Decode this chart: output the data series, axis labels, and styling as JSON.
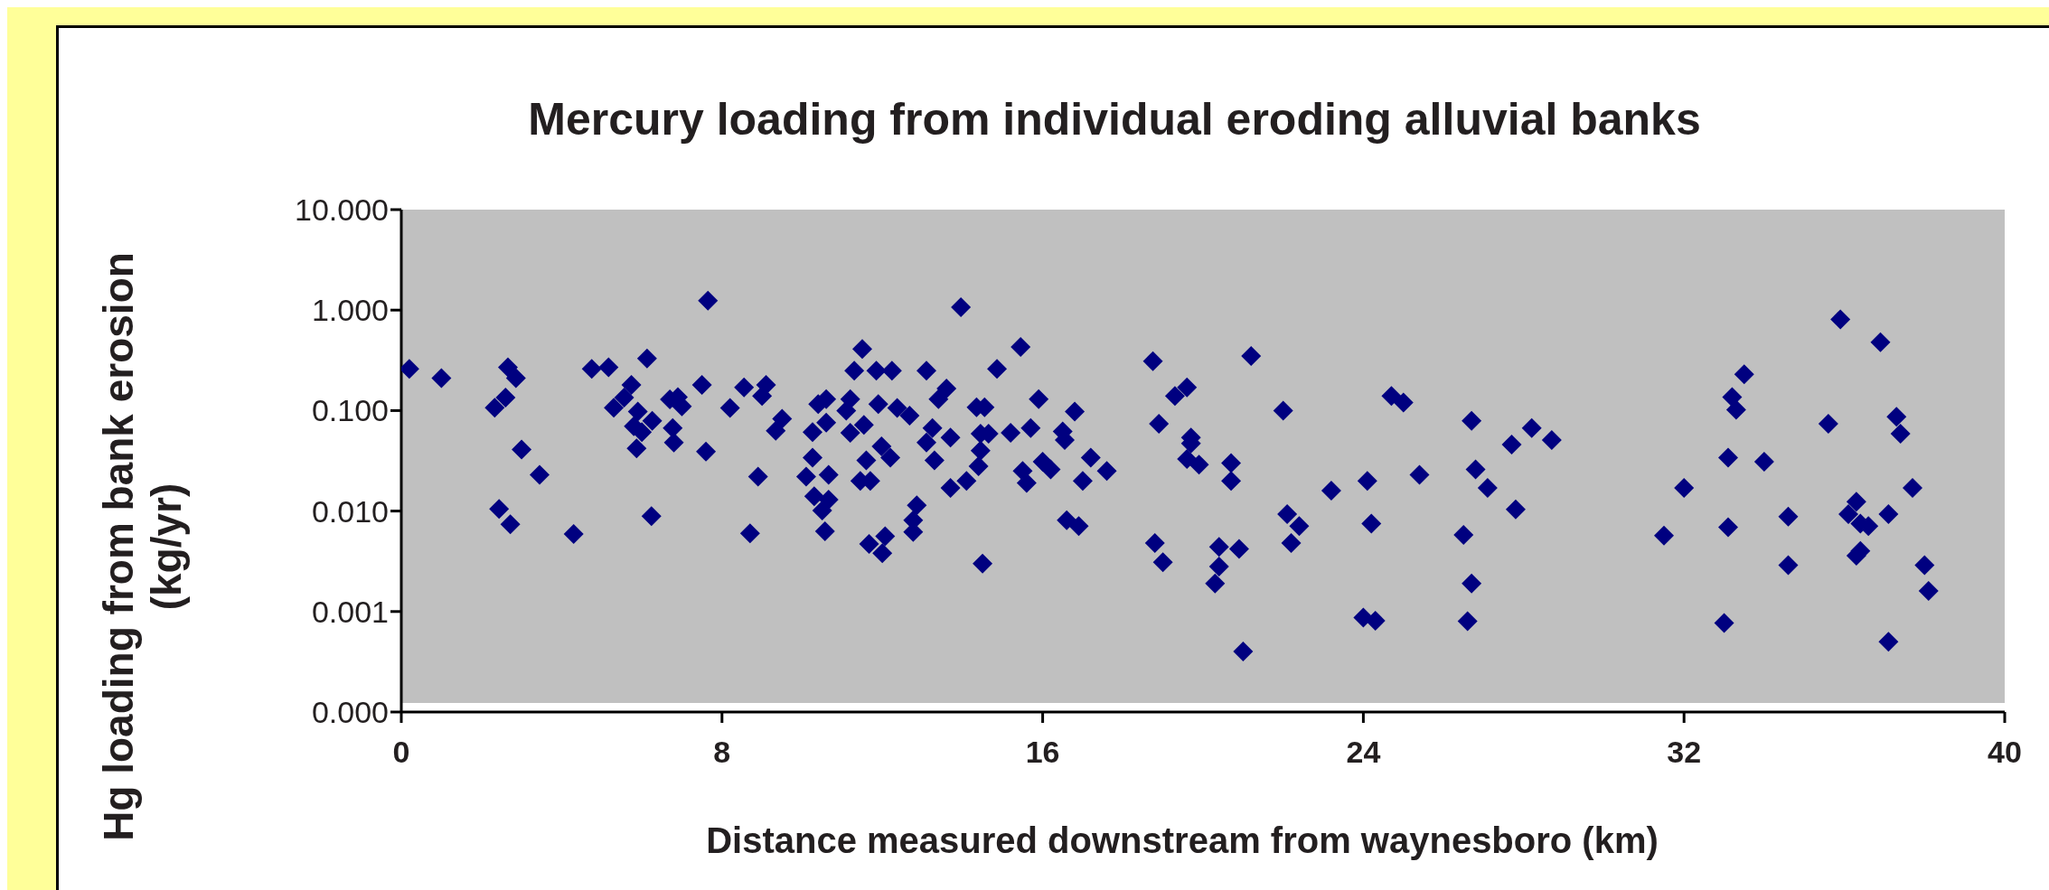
{
  "chart_data": {
    "type": "scatter",
    "title": "Mercury loading from individual eroding alluvial banks",
    "xlabel": "Distance measured downstream from waynesboro (km)",
    "ylabel": "Hg loading from bank erosion (kg/yr)",
    "log": "y",
    "xlim": [
      0,
      40
    ],
    "xticks": [
      0,
      8,
      16,
      24,
      32,
      40
    ],
    "ylim": [
      0.0001,
      10
    ],
    "yticks": [
      {
        "value": 0.0001,
        "label": "0.000"
      },
      {
        "value": 0.001,
        "label": "0.001"
      },
      {
        "value": 0.01,
        "label": "0.010"
      },
      {
        "value": 0.1,
        "label": "0.100"
      },
      {
        "value": 1,
        "label": "1.000"
      },
      {
        "value": 10,
        "label": "10.000"
      }
    ],
    "grid": false,
    "legend": false,
    "marker": "diamond",
    "series": [
      {
        "color": "#000080",
        "x": [
          0.2,
          1.0,
          2.66,
          2.86,
          2.6,
          2.33,
          3.0,
          3.45,
          2.44,
          2.72,
          4.3,
          4.75,
          5.17,
          6.13,
          5.74,
          5.56,
          5.3,
          5.9,
          6.26,
          5.8,
          6.0,
          5.87,
          6.24,
          6.77,
          6.8,
          6.7,
          6.9,
          7.0,
          7.65,
          7.5,
          7.6,
          8.2,
          8.55,
          9.1,
          9.0,
          9.5,
          9.34,
          8.9,
          8.7,
          10.4,
          10.6,
          10.26,
          10.6,
          10.26,
          10.1,
          10.66,
          10.3,
          10.66,
          10.5,
          10.57,
          11.5,
          11.3,
          11.85,
          12.24,
          13.1,
          11.2,
          11.1,
          11.9,
          12.37,
          12.68,
          11.54,
          11.2,
          11.98,
          12.2,
          11.6,
          11.7,
          11.45,
          12.86,
          12.77,
          12.77,
          11.67,
          12.07,
          12.0,
          13.96,
          15.45,
          14.86,
          13.6,
          13.4,
          14.35,
          14.55,
          15.9,
          16.8,
          13.25,
          13.7,
          13.1,
          14.45,
          14.65,
          15.2,
          15.7,
          16.5,
          16.55,
          13.3,
          14.45,
          14.4,
          16.0,
          16.2,
          15.5,
          15.6,
          17.2,
          17.6,
          17.0,
          14.1,
          13.7,
          16.6,
          16.9,
          14.5,
          18.75,
          21.2,
          19.6,
          19.3,
          22.0,
          18.9,
          19.7,
          19.7,
          19.6,
          19.9,
          20.7,
          20.7,
          24.7,
          25.0,
          23.2,
          24.1,
          25.4,
          22.1,
          22.4,
          22.2,
          24.2,
          18.8,
          19.0,
          20.4,
          20.9,
          20.4,
          20.3,
          21.0,
          24.0,
          24.3,
          26.5,
          26.7,
          26.6,
          26.7,
          26.8,
          35.9,
          36.9,
          33.5,
          33.2,
          33.3,
          28.2,
          27.7,
          28.7,
          27.1,
          27.8,
          35.6,
          37.3,
          37.4,
          33.1,
          34.0,
          32.0,
          31.5,
          33.1,
          34.6,
          34.6,
          33.0,
          36.3,
          36.1,
          36.4,
          36.6,
          37.1,
          37.7,
          36.4,
          36.3,
          38.0,
          38.1,
          37.1
        ],
        "values": [
          0.26,
          0.21,
          0.27,
          0.21,
          0.135,
          0.107,
          0.041,
          0.023,
          0.0105,
          0.0074,
          0.0059,
          0.26,
          0.27,
          0.33,
          0.18,
          0.135,
          0.107,
          0.098,
          0.079,
          0.07,
          0.061,
          0.042,
          0.0089,
          0.067,
          0.048,
          0.129,
          0.136,
          0.11,
          1.24,
          0.18,
          0.039,
          0.106,
          0.17,
          0.18,
          0.14,
          0.083,
          0.063,
          0.022,
          0.006,
          0.116,
          0.13,
          0.061,
          0.076,
          0.034,
          0.022,
          0.023,
          0.014,
          0.013,
          0.0101,
          0.0063,
          0.41,
          0.25,
          0.25,
          0.25,
          0.25,
          0.13,
          0.1,
          0.116,
          0.106,
          0.089,
          0.072,
          0.06,
          0.044,
          0.034,
          0.032,
          0.02,
          0.02,
          0.0114,
          0.0081,
          0.0062,
          0.0047,
          0.0056,
          0.0038,
          1.07,
          0.43,
          0.26,
          0.166,
          0.13,
          0.108,
          0.108,
          0.13,
          0.098,
          0.067,
          0.054,
          0.048,
          0.059,
          0.059,
          0.06,
          0.067,
          0.062,
          0.051,
          0.032,
          0.04,
          0.028,
          0.031,
          0.026,
          0.025,
          0.019,
          0.034,
          0.025,
          0.02,
          0.02,
          0.017,
          0.0081,
          0.0071,
          0.003,
          0.31,
          0.35,
          0.17,
          0.14,
          0.1,
          0.074,
          0.054,
          0.047,
          0.033,
          0.029,
          0.03,
          0.02,
          0.14,
          0.12,
          0.016,
          0.02,
          0.023,
          0.0093,
          0.0071,
          0.0048,
          0.0075,
          0.0048,
          0.0031,
          0.0044,
          0.0042,
          0.0028,
          0.0019,
          0.0004,
          0.00087,
          0.00081,
          0.0058,
          0.0019,
          0.0008,
          0.079,
          0.026,
          0.81,
          0.48,
          0.23,
          0.136,
          0.102,
          0.067,
          0.046,
          0.051,
          0.017,
          0.0104,
          0.074,
          0.087,
          0.059,
          0.034,
          0.031,
          0.017,
          0.0057,
          0.0069,
          0.0088,
          0.0029,
          0.00077,
          0.0124,
          0.0093,
          0.0075,
          0.0071,
          0.0093,
          0.017,
          0.004,
          0.0036,
          0.0029,
          0.0016,
          0.0005
        ]
      }
    ]
  }
}
